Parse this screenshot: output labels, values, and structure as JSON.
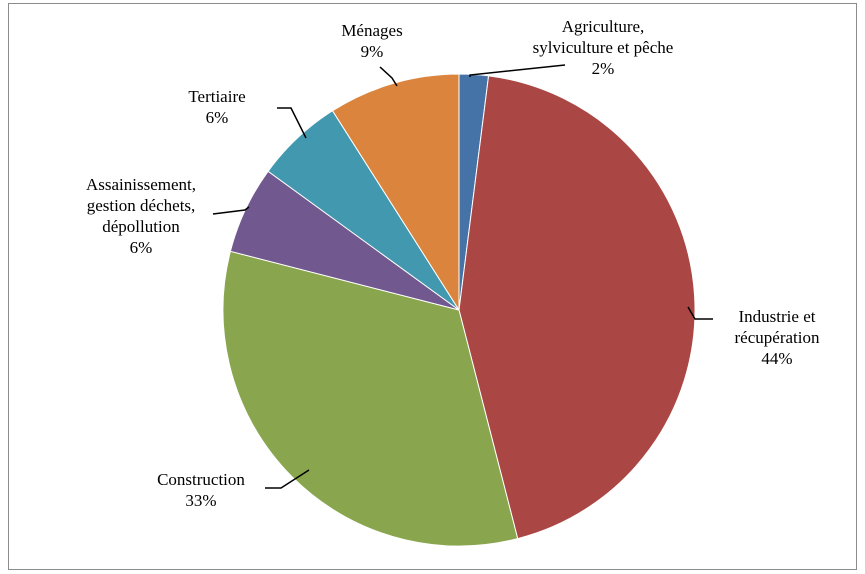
{
  "chart_data": {
    "type": "pie",
    "title": "",
    "start_angle_deg": 0,
    "direction": "clockwise",
    "legend": "none",
    "slices": [
      {
        "key": "agri",
        "label_lines": [
          "Agriculture,",
          "sylviculture et pêche"
        ],
        "pct_label": "2%",
        "value": 2,
        "color": "#4572a7"
      },
      {
        "key": "industrie",
        "label_lines": [
          "Industrie et",
          "récupération"
        ],
        "pct_label": "44%",
        "value": 44,
        "color": "#aa4643"
      },
      {
        "key": "construction",
        "label_lines": [
          "Construction"
        ],
        "pct_label": "33%",
        "value": 33,
        "color": "#89a54e"
      },
      {
        "key": "assainissement",
        "label_lines": [
          "Assainissement,",
          "gestion déchets,",
          "dépollution"
        ],
        "pct_label": "6%",
        "value": 6,
        "color": "#71588f"
      },
      {
        "key": "tertiaire",
        "label_lines": [
          "Tertiaire"
        ],
        "pct_label": "6%",
        "value": 6,
        "color": "#4198af"
      },
      {
        "key": "menages",
        "label_lines": [
          "Ménages"
        ],
        "pct_label": "9%",
        "value": 9,
        "color": "#db843d"
      }
    ]
  }
}
